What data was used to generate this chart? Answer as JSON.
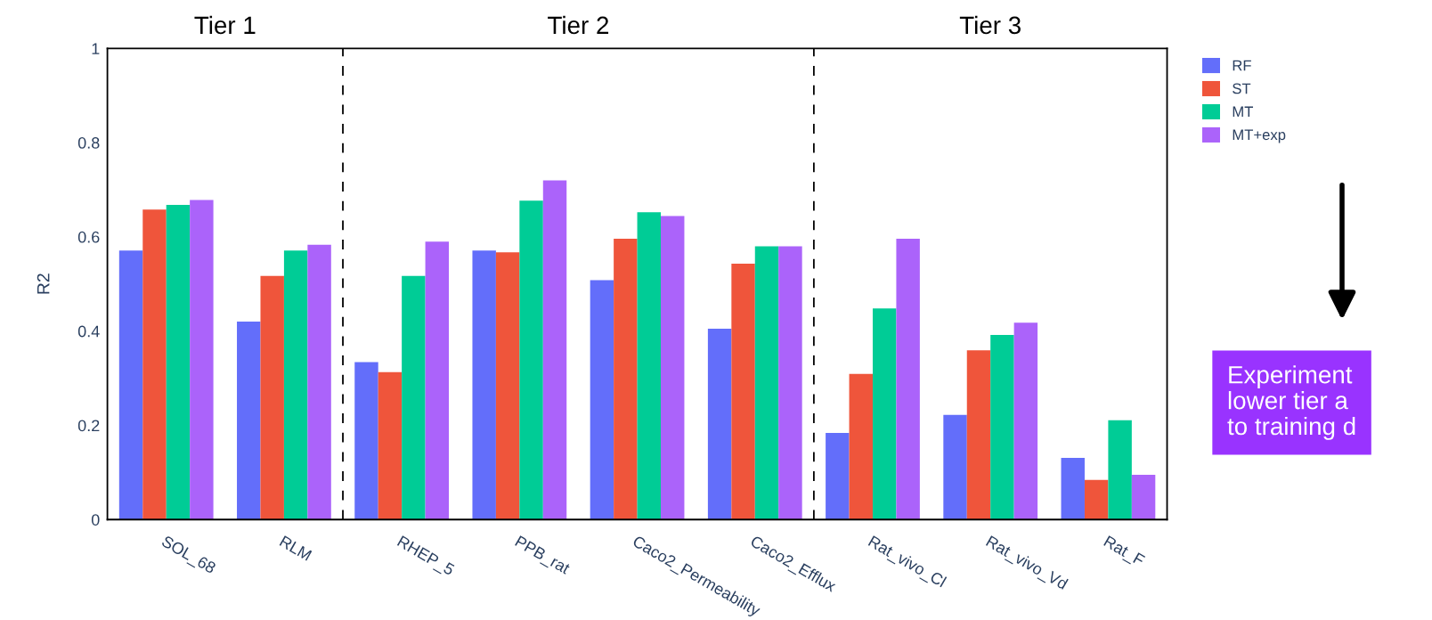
{
  "chart_data": {
    "type": "bar",
    "ylabel": "R2",
    "categories": [
      "SOL_68",
      "RLM",
      "RHEP_5",
      "PPB_rat",
      "Caco2_Permeability",
      "Caco2_Efflux",
      "Rat_vivo_Cl",
      "Rat_vivo_Vd",
      "Rat_F"
    ],
    "series": [
      {
        "name": "RF",
        "color": "#636efa",
        "values": [
          0.571,
          0.42,
          0.334,
          0.571,
          0.508,
          0.405,
          0.184,
          0.222,
          0.131
        ]
      },
      {
        "name": "ST",
        "color": "#ef553b",
        "values": [
          0.658,
          0.517,
          0.313,
          0.567,
          0.596,
          0.543,
          0.309,
          0.359,
          0.084
        ]
      },
      {
        "name": "MT",
        "color": "#00cc96",
        "values": [
          0.668,
          0.571,
          0.517,
          0.677,
          0.652,
          0.58,
          0.448,
          0.392,
          0.211
        ]
      },
      {
        "name": "MT+exp",
        "color": "#ab63fa",
        "values": [
          0.678,
          0.583,
          0.59,
          0.72,
          0.644,
          0.58,
          0.596,
          0.418,
          0.095
        ]
      }
    ],
    "ylim": [
      0,
      1
    ],
    "yticks": [
      0,
      {
        "value": 0.2,
        "label": "0.2"
      },
      {
        "value": 0.4,
        "label": "0.4"
      },
      {
        "value": 0.6,
        "label": "0.6"
      },
      {
        "value": 0.8,
        "label": "0.8"
      },
      1
    ],
    "annotations": [
      "Tier 1",
      "Tier 2",
      "Tier 3",
      "Experiment\nlower tier a\nto training d"
    ],
    "legend": "top right",
    "grid": false
  }
}
